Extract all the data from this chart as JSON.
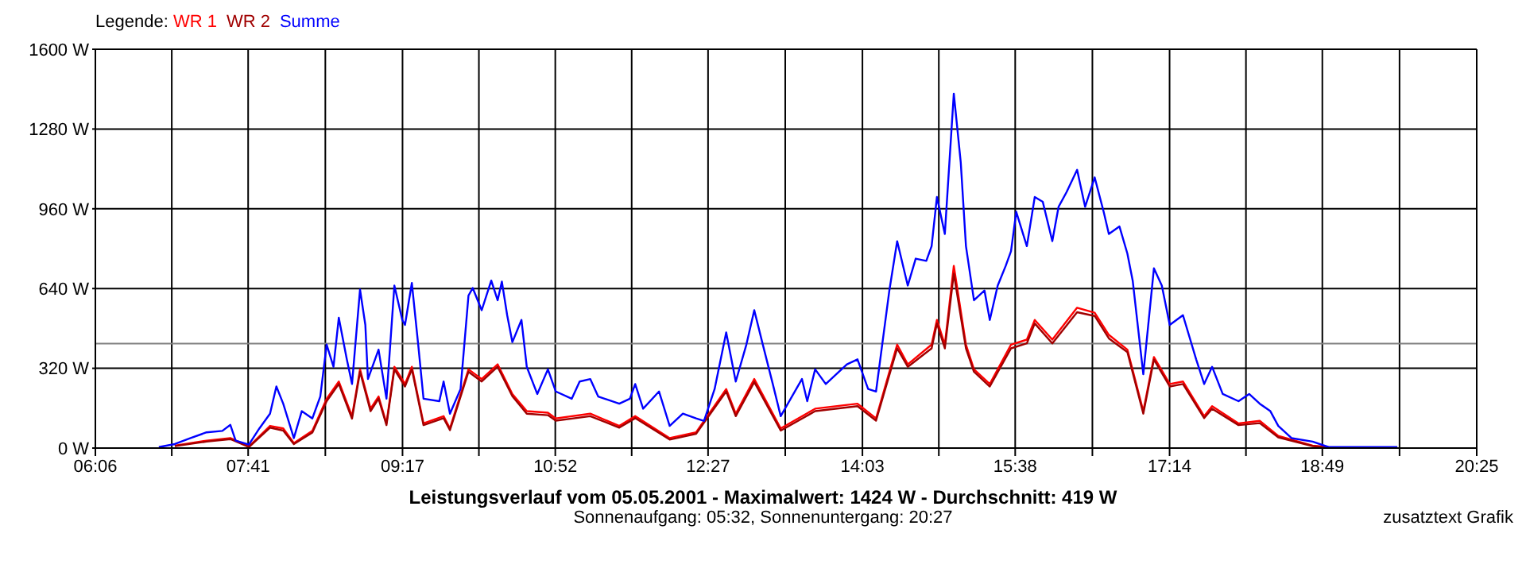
{
  "chart_data": {
    "type": "line",
    "title": "Leistungsverlauf vom 05.05.2001 - Maximalwert: 1424 W - Durchschnitt: 419 W",
    "subtitle": "Sonnenaufgang: 05:32, Sonnenuntergang: 20:27",
    "legend_title": "Legende:",
    "legend": "top left",
    "grid": true,
    "marker": "none",
    "line_style": "solid",
    "annotations": [
      "zusatztext Grafik"
    ],
    "xlim": [
      6.1,
      20.41667
    ],
    "ylim": [
      0,
      1600
    ],
    "xticks": [
      {
        "value": 6.1,
        "label": "06:06"
      },
      {
        "value": 6.89167,
        "label": null
      },
      {
        "value": 7.68333,
        "label": "07:41"
      },
      {
        "value": 8.48333,
        "label": null
      },
      {
        "value": 9.28333,
        "label": "09:17"
      },
      {
        "value": 10.075,
        "label": null
      },
      {
        "value": 10.86667,
        "label": "10:52"
      },
      {
        "value": 11.65833,
        "label": null
      },
      {
        "value": 12.45,
        "label": "12:27"
      },
      {
        "value": 13.25,
        "label": null
      },
      {
        "value": 14.05,
        "label": "14:03"
      },
      {
        "value": 14.84167,
        "label": null
      },
      {
        "value": 15.63333,
        "label": "15:38"
      },
      {
        "value": 16.43333,
        "label": null
      },
      {
        "value": 17.23333,
        "label": "17:14"
      },
      {
        "value": 18.025,
        "label": null
      },
      {
        "value": 18.81667,
        "label": "18:49"
      },
      {
        "value": 19.61667,
        "label": null
      },
      {
        "value": 20.41667,
        "label": "20:25"
      }
    ],
    "yticks": [
      {
        "value": 0,
        "label": "0 W"
      },
      {
        "value": 320,
        "label": "320 W"
      },
      {
        "value": 640,
        "label": "640 W"
      },
      {
        "value": 960,
        "label": "960 W"
      },
      {
        "value": 1280,
        "label": "1280 W"
      },
      {
        "value": 1600,
        "label": "1600 W"
      }
    ],
    "ref_lines": [
      {
        "axis": "y",
        "value": 419,
        "label": null,
        "color": "#808080"
      }
    ],
    "series": [
      {
        "name": "WR 1",
        "color": "#ff0000",
        "x": [
          6.923,
          7.252,
          7.499,
          7.691,
          7.91,
          8.047,
          8.157,
          8.349,
          8.497,
          8.623,
          8.76,
          8.843,
          8.952,
          9.035,
          9.117,
          9.199,
          9.309,
          9.38,
          9.501,
          9.709,
          9.775,
          9.967,
          10.104,
          10.269,
          10.422,
          10.571,
          10.79,
          10.872,
          11.229,
          11.53,
          11.695,
          12.052,
          12.326,
          12.638,
          12.737,
          12.929,
          13.203,
          13.56,
          13.999,
          14.191,
          14.41,
          14.52,
          14.767,
          14.822,
          14.904,
          14.997,
          15.123,
          15.206,
          15.37,
          15.59,
          15.754,
          15.836,
          16.018,
          16.275,
          16.457,
          16.604,
          16.796,
          16.961,
          17.071,
          17.235,
          17.372,
          17.592,
          17.674,
          17.948,
          18.168,
          18.36,
          18.716,
          18.881
        ],
        "values": [
          10,
          30,
          40,
          6,
          89,
          79,
          20,
          69,
          198,
          267,
          128,
          316,
          158,
          207,
          99,
          326,
          257,
          326,
          99,
          128,
          79,
          316,
          277,
          336,
          217,
          148,
          142,
          119,
          138,
          89,
          128,
          40,
          63,
          237,
          138,
          277,
          79,
          158,
          178,
          119,
          415,
          336,
          415,
          514,
          415,
          731,
          415,
          316,
          257,
          415,
          435,
          514,
          435,
          563,
          543,
          454,
          395,
          148,
          365,
          257,
          267,
          128,
          168,
          99,
          109,
          49,
          10,
          4
        ]
      },
      {
        "name": "WR 2",
        "color": "#a00000",
        "x": [
          6.923,
          7.252,
          7.499,
          7.691,
          7.91,
          8.047,
          8.157,
          8.349,
          8.497,
          8.623,
          8.76,
          8.843,
          8.952,
          9.035,
          9.117,
          9.199,
          9.309,
          9.38,
          9.501,
          9.709,
          9.775,
          9.967,
          10.104,
          10.269,
          10.422,
          10.571,
          10.79,
          10.872,
          11.229,
          11.53,
          11.695,
          12.052,
          12.326,
          12.638,
          12.737,
          12.929,
          13.203,
          13.56,
          13.999,
          14.191,
          14.41,
          14.52,
          14.767,
          14.822,
          14.904,
          14.997,
          15.123,
          15.206,
          15.37,
          15.59,
          15.754,
          15.836,
          16.018,
          16.275,
          16.457,
          16.604,
          16.796,
          16.961,
          17.071,
          17.235,
          17.372,
          17.592,
          17.674,
          17.948,
          18.168,
          18.36,
          18.716,
          18.881
        ],
        "values": [
          8,
          26,
          36,
          4,
          82,
          70,
          16,
          62,
          188,
          257,
          118,
          306,
          148,
          198,
          92,
          316,
          247,
          316,
          92,
          120,
          72,
          306,
          267,
          326,
          208,
          138,
          132,
          110,
          128,
          82,
          120,
          34,
          57,
          227,
          128,
          265,
          70,
          148,
          168,
          110,
          400,
          326,
          400,
          500,
          400,
          700,
          400,
          306,
          247,
          400,
          420,
          500,
          420,
          545,
          530,
          440,
          385,
          138,
          355,
          247,
          257,
          120,
          158,
          92,
          100,
          43,
          8,
          2
        ]
      },
      {
        "name": "Summe",
        "color": "#0000ff",
        "x": [
          6.758,
          6.923,
          7.087,
          7.252,
          7.416,
          7.499,
          7.554,
          7.691,
          7.8,
          7.91,
          7.976,
          8.047,
          8.157,
          8.239,
          8.349,
          8.431,
          8.497,
          8.568,
          8.623,
          8.706,
          8.76,
          8.843,
          8.898,
          8.925,
          9.035,
          9.117,
          9.199,
          9.281,
          9.309,
          9.38,
          9.446,
          9.501,
          9.665,
          9.709,
          9.775,
          9.885,
          9.967,
          10.011,
          10.104,
          10.203,
          10.269,
          10.313,
          10.368,
          10.422,
          10.516,
          10.571,
          10.68,
          10.79,
          10.872,
          11.037,
          11.119,
          11.229,
          11.311,
          11.53,
          11.64,
          11.695,
          11.777,
          11.942,
          12.052,
          12.189,
          12.326,
          12.408,
          12.518,
          12.638,
          12.737,
          12.847,
          12.929,
          13.011,
          13.121,
          13.203,
          13.423,
          13.478,
          13.56,
          13.67,
          13.889,
          13.999,
          14.109,
          14.191,
          14.329,
          14.41,
          14.52,
          14.602,
          14.712,
          14.767,
          14.822,
          14.904,
          14.997,
          15.069,
          15.123,
          15.206,
          15.315,
          15.37,
          15.452,
          15.535,
          15.59,
          15.644,
          15.754,
          15.836,
          15.919,
          16.018,
          16.083,
          16.166,
          16.275,
          16.358,
          16.457,
          16.55,
          16.604,
          16.714,
          16.796,
          16.851,
          16.961,
          17.071,
          17.153,
          17.235,
          17.372,
          17.509,
          17.592,
          17.674,
          17.784,
          17.948,
          18.058,
          18.168,
          18.278,
          18.36,
          18.497,
          18.716,
          18.881,
          19.594
        ],
        "values": [
          4,
          16,
          40,
          63,
          69,
          93,
          30,
          14,
          79,
          138,
          247,
          178,
          40,
          148,
          119,
          207,
          415,
          326,
          523,
          356,
          257,
          636,
          494,
          277,
          395,
          198,
          652,
          514,
          494,
          662,
          415,
          198,
          188,
          267,
          138,
          237,
          612,
          642,
          553,
          672,
          593,
          668,
          533,
          425,
          514,
          326,
          217,
          316,
          227,
          198,
          267,
          277,
          207,
          178,
          198,
          257,
          158,
          227,
          89,
          138,
          119,
          109,
          237,
          464,
          267,
          415,
          553,
          425,
          257,
          128,
          277,
          188,
          316,
          257,
          336,
          356,
          237,
          227,
          632,
          830,
          652,
          760,
          751,
          810,
          1007,
          859,
          1422,
          1146,
          810,
          593,
          632,
          514,
          652,
          731,
          790,
          948,
          810,
          1007,
          988,
          830,
          968,
          1027,
          1116,
          968,
          1086,
          948,
          859,
          889,
          780,
          672,
          296,
          721,
          652,
          494,
          533,
          356,
          257,
          326,
          217,
          188,
          217,
          178,
          148,
          89,
          40,
          26,
          4,
          4
        ]
      }
    ]
  }
}
